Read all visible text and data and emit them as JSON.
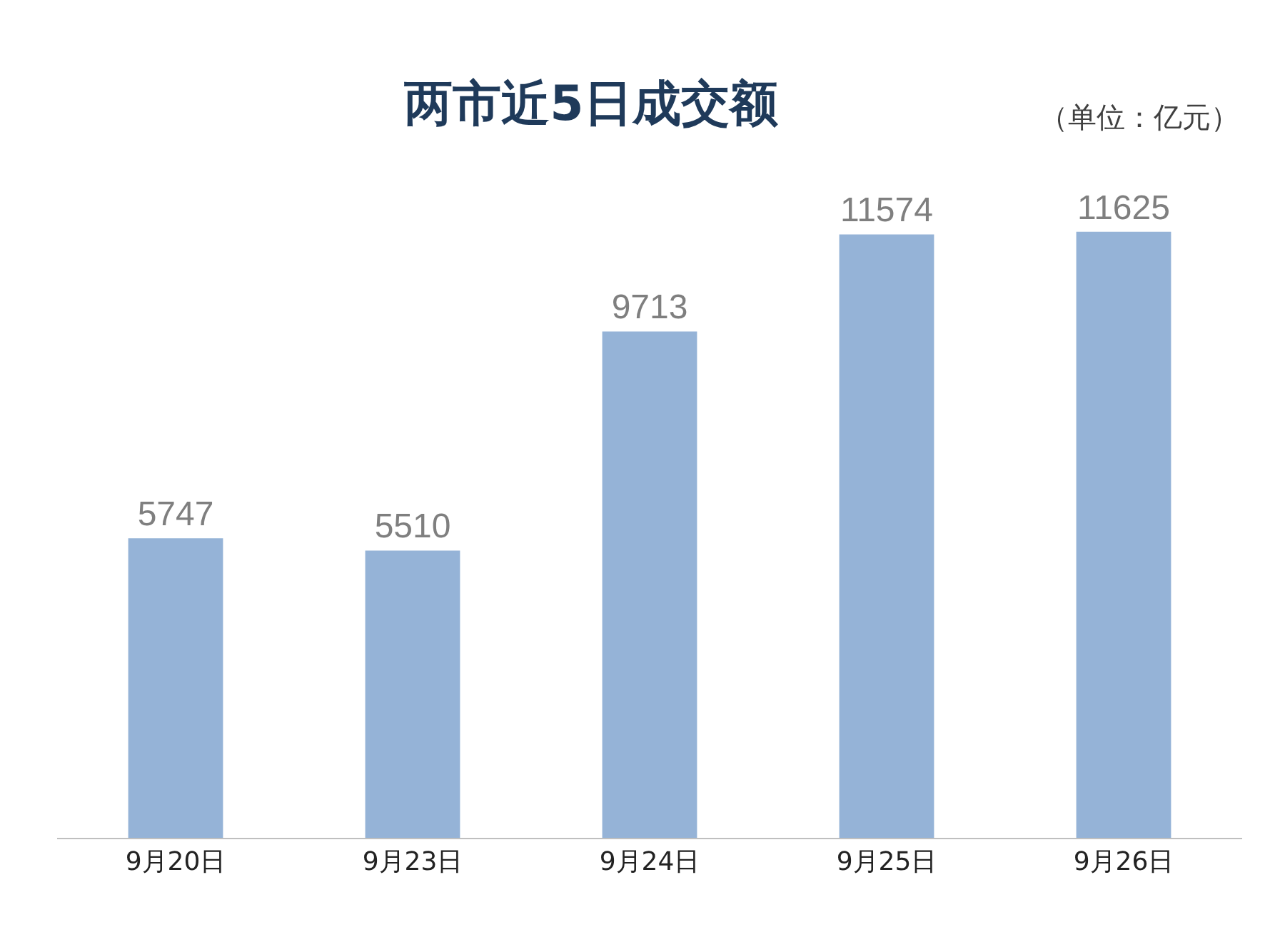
{
  "chart_data": {
    "type": "bar",
    "title": "两市近5日成交额",
    "annotations": [
      "（单位：亿元）"
    ],
    "categories": [
      "9月20日",
      "9月23日",
      "9月24日",
      "9月25日",
      "9月26日"
    ],
    "values": [
      5747,
      5510,
      9713,
      11574,
      11625
    ],
    "color": "#95b3d7",
    "data_labels": true
  }
}
